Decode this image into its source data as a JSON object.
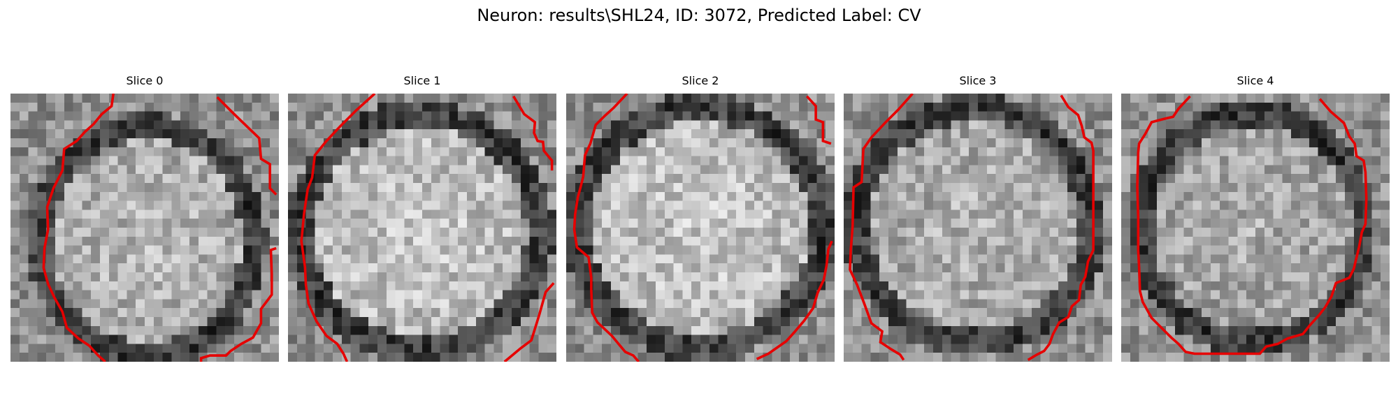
{
  "figure": {
    "title": "Neuron: results\\SHL24, ID: 3072, Predicted Label: CV"
  },
  "colors": {
    "contour": "#e60000",
    "background": "#ffffff"
  },
  "slices": [
    {
      "title": "Slice 0"
    },
    {
      "title": "Slice 1"
    },
    {
      "title": "Slice 2"
    },
    {
      "title": "Slice 3"
    },
    {
      "title": "Slice 4"
    }
  ]
}
